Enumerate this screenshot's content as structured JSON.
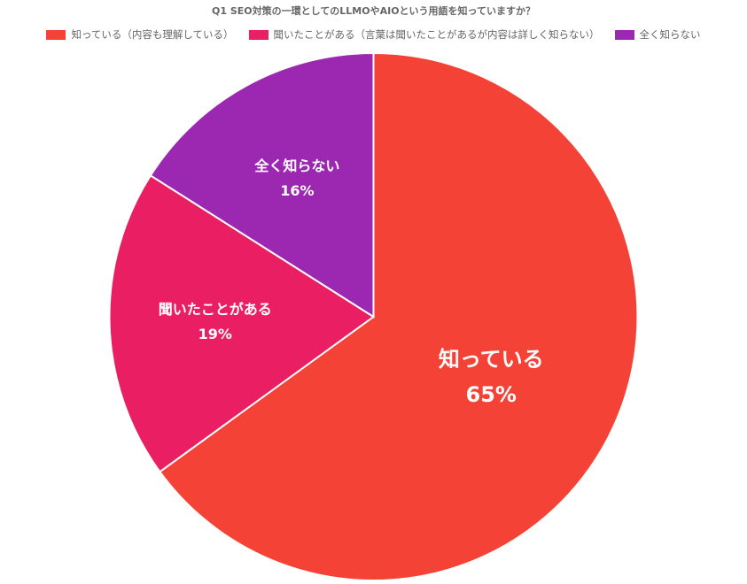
{
  "chart_data": {
    "type": "pie",
    "title": "Q1 SEO対策の一環としてのLLMOやAIOという用語を知っていますか？",
    "legend_position": "top",
    "slices": [
      {
        "legend": "知っている（内容も理解している）",
        "label": "知っている",
        "value": 65,
        "value_label": "65%",
        "color": "#f44336"
      },
      {
        "legend": "聞いたことがある（言葉は聞いたことがあるが内容は詳しく知らない）",
        "label": "聞いたことがある",
        "value": 19,
        "value_label": "19%",
        "color": "#e91e63"
      },
      {
        "legend": "全く知らない",
        "label": "全く知らない",
        "value": 16,
        "value_label": "16%",
        "color": "#9c27b0"
      }
    ]
  }
}
